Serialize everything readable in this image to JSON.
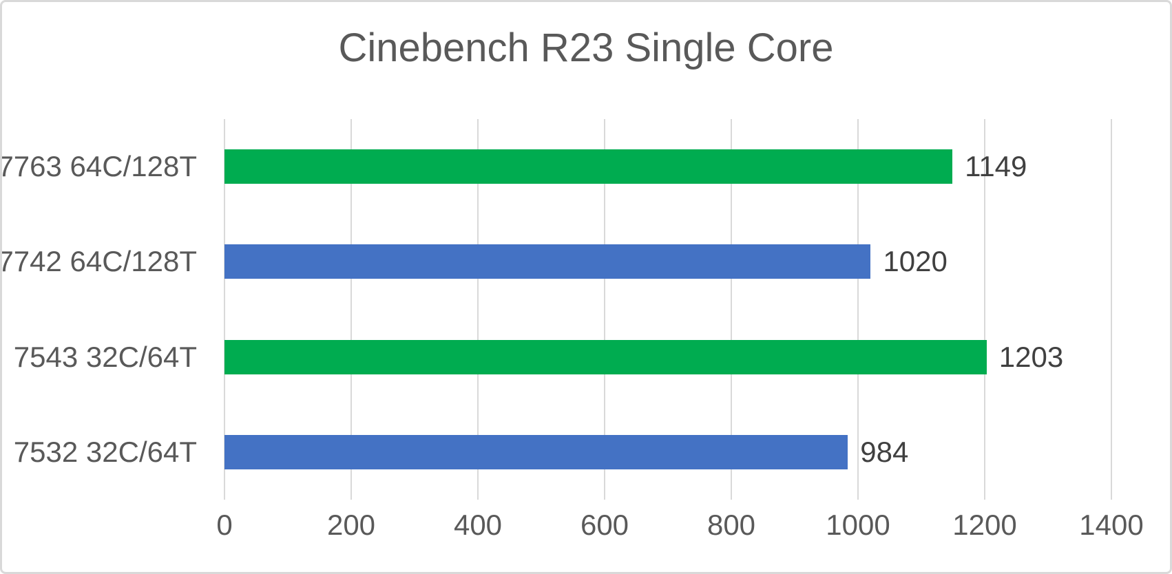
{
  "colors": {
    "green": "#00AC50",
    "blue": "#4472C4",
    "title_text": "#595959",
    "label_text": "#404040",
    "tick_text": "#595959",
    "gridline": "#D9D9D9",
    "border": "#D9D9D9",
    "background": "#FFFFFF"
  },
  "chart_data": {
    "type": "bar",
    "orientation": "horizontal",
    "title": "Cinebench R23 Single Core",
    "categories": [
      "7763 64C/128T",
      "7742 64C/128T",
      "7543 32C/64T",
      "7532 32C/64T"
    ],
    "values": [
      1149,
      1020,
      1203,
      984
    ],
    "data_labels": [
      "1149",
      "1020",
      "1203",
      "984"
    ],
    "bar_colors": [
      "#00AC50",
      "#4472C4",
      "#00AC50",
      "#4472C4"
    ],
    "xlabel": "",
    "ylabel": "",
    "xlim": [
      0,
      1400
    ],
    "x_ticks": [
      0,
      200,
      400,
      600,
      800,
      1000,
      1200,
      1400
    ],
    "grid": "vertical",
    "legend": "none",
    "data_labels_position": "outside-end"
  }
}
